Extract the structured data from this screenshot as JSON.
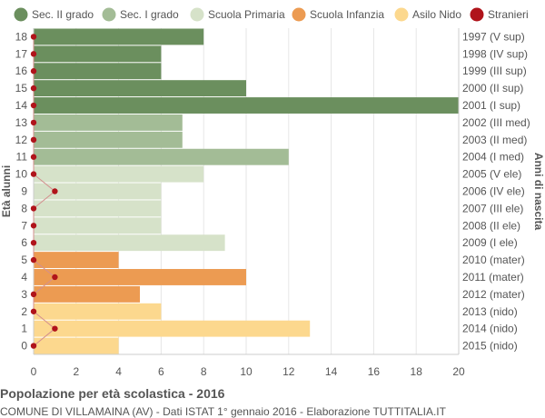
{
  "chart_data": {
    "type": "bar",
    "orientation": "horizontal",
    "title": "Popolazione per età scolastica - 2016",
    "subtitle": "COMUNE DI VILLAMAINA (AV) - Dati ISTAT 1° gennaio 2016 - Elaborazione TUTTITALIA.IT",
    "ylabel": "Età alunni",
    "ylabel_right": "Anni di nascita",
    "xlim": [
      0,
      20
    ],
    "xticks": [
      0,
      2,
      4,
      6,
      8,
      10,
      12,
      14,
      16,
      18,
      20
    ],
    "grid": true,
    "legend_position": "top",
    "legend": [
      {
        "name": "Sec. II grado",
        "color": "#6b8f5e",
        "kind": "bar"
      },
      {
        "name": "Sec. I grado",
        "color": "#a3bc96",
        "kind": "bar"
      },
      {
        "name": "Scuola Primaria",
        "color": "#d6e2c9",
        "kind": "bar"
      },
      {
        "name": "Scuola Infanzia",
        "color": "#ec9b52",
        "kind": "bar"
      },
      {
        "name": "Asilo Nido",
        "color": "#fcd88e",
        "kind": "bar"
      },
      {
        "name": "Stranieri",
        "color": "#b0141b",
        "kind": "dot"
      }
    ],
    "rows": [
      {
        "age": 18,
        "birth": "1997 (V sup)",
        "value": 8,
        "foreign": 0,
        "group": 0
      },
      {
        "age": 17,
        "birth": "1998 (IV sup)",
        "value": 6,
        "foreign": 0,
        "group": 0
      },
      {
        "age": 16,
        "birth": "1999 (III sup)",
        "value": 6,
        "foreign": 0,
        "group": 0
      },
      {
        "age": 15,
        "birth": "2000 (II sup)",
        "value": 10,
        "foreign": 0,
        "group": 0
      },
      {
        "age": 14,
        "birth": "2001 (I sup)",
        "value": 20,
        "foreign": 0,
        "group": 0
      },
      {
        "age": 13,
        "birth": "2002 (III med)",
        "value": 7,
        "foreign": 0,
        "group": 1
      },
      {
        "age": 12,
        "birth": "2003 (II med)",
        "value": 7,
        "foreign": 0,
        "group": 1
      },
      {
        "age": 11,
        "birth": "2004 (I med)",
        "value": 12,
        "foreign": 0,
        "group": 1
      },
      {
        "age": 10,
        "birth": "2005 (V ele)",
        "value": 8,
        "foreign": 0,
        "group": 2
      },
      {
        "age": 9,
        "birth": "2006 (IV ele)",
        "value": 6,
        "foreign": 1,
        "group": 2
      },
      {
        "age": 8,
        "birth": "2007 (III ele)",
        "value": 6,
        "foreign": 0,
        "group": 2
      },
      {
        "age": 7,
        "birth": "2008 (II ele)",
        "value": 6,
        "foreign": 0,
        "group": 2
      },
      {
        "age": 6,
        "birth": "2009 (I ele)",
        "value": 9,
        "foreign": 0,
        "group": 2
      },
      {
        "age": 5,
        "birth": "2010 (mater)",
        "value": 4,
        "foreign": 0,
        "group": 3
      },
      {
        "age": 4,
        "birth": "2011 (mater)",
        "value": 10,
        "foreign": 1,
        "group": 3
      },
      {
        "age": 3,
        "birth": "2012 (mater)",
        "value": 5,
        "foreign": 0,
        "group": 3
      },
      {
        "age": 2,
        "birth": "2013 (nido)",
        "value": 6,
        "foreign": 0,
        "group": 4
      },
      {
        "age": 1,
        "birth": "2014 (nido)",
        "value": 13,
        "foreign": 1,
        "group": 4
      },
      {
        "age": 0,
        "birth": "2015 (nido)",
        "value": 4,
        "foreign": 0,
        "group": 4
      }
    ]
  }
}
